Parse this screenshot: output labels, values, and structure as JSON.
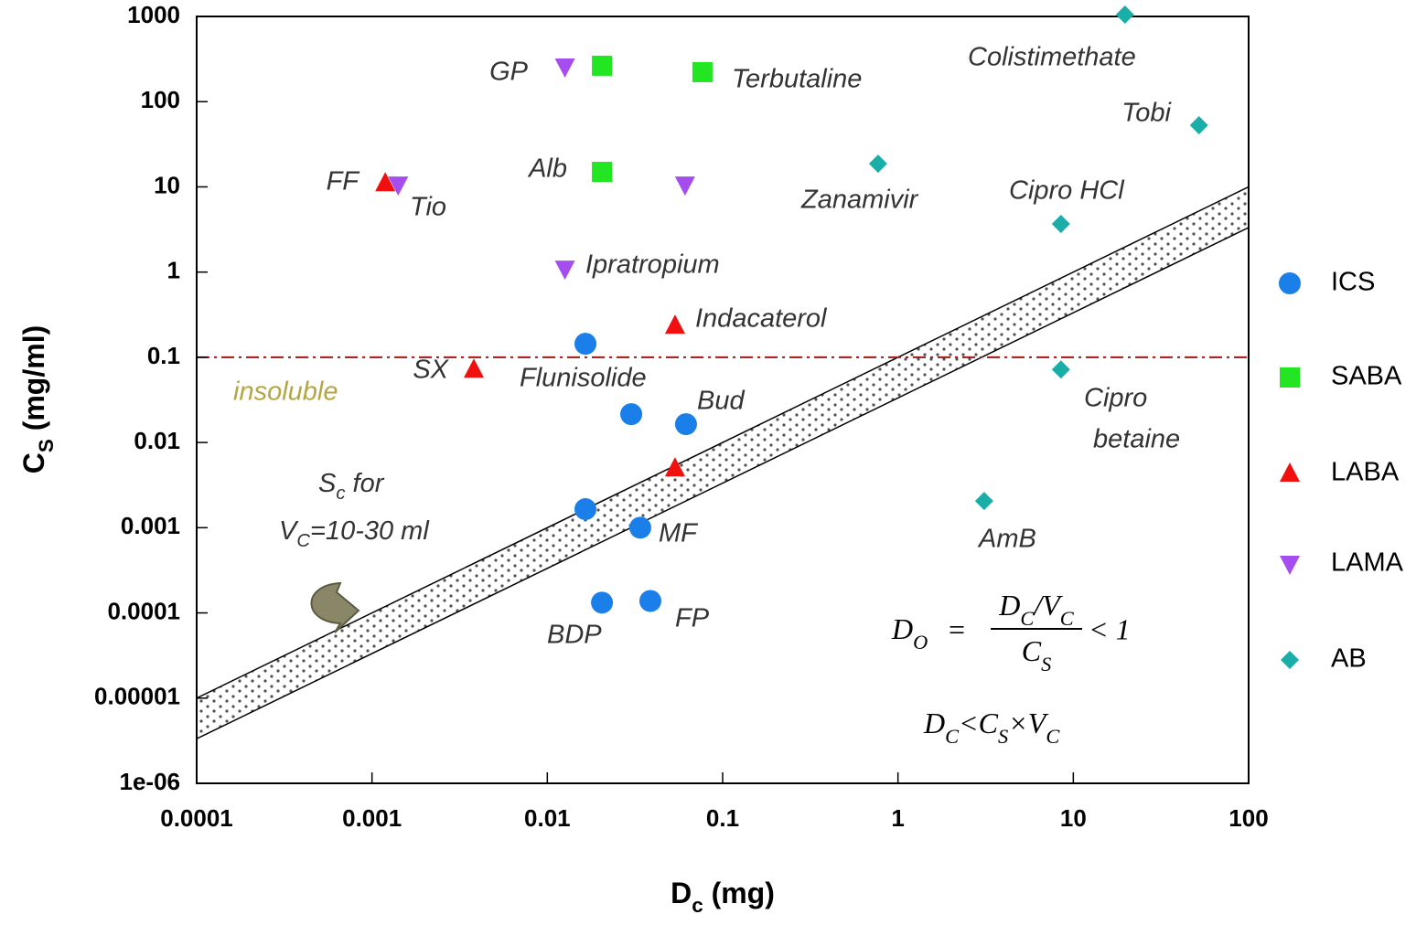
{
  "chart_data": {
    "type": "scatter",
    "x_title": [
      "D",
      "c",
      " (mg)"
    ],
    "y_title": [
      "C",
      "S",
      " (mg/ml)"
    ],
    "xlim": [
      0.0001,
      100
    ],
    "ylim": [
      1e-06,
      1000
    ],
    "log_x": true,
    "log_y": true,
    "xticks": [
      0.0001,
      0.001,
      0.01,
      0.1,
      1,
      10,
      100
    ],
    "yticks": [
      1000,
      100,
      10,
      1,
      0.1,
      0.01,
      0.001,
      0.0001,
      1e-05,
      {
        "value": 1e-06,
        "label": "1e-06"
      }
    ],
    "series": [
      {
        "name": "ICS",
        "color": "#1a7fe8",
        "marker": "circle",
        "x": [
          0.0165,
          0.0301,
          0.0618,
          0.0165,
          0.0339,
          0.0205,
          0.0387
        ],
        "values": [
          0.144,
          0.0215,
          0.0164,
          0.00165,
          0.001,
          0.000132,
          0.000138
        ]
      },
      {
        "name": "SABA",
        "color": "#22e622",
        "marker": "square",
        "x": [
          0.0205,
          0.0767,
          0.0205
        ],
        "values": [
          264,
          222,
          15
        ]
      },
      {
        "name": "LABA",
        "color": "#f01010",
        "marker": "triangle-up",
        "x": [
          0.00119,
          0.00381,
          0.0535,
          0.0535
        ],
        "values": [
          11.1,
          0.072,
          0.236,
          0.005
        ]
      },
      {
        "name": "LAMA",
        "color": "#a64df0",
        "marker": "triangle-down",
        "x": [
          0.0126,
          0.00141,
          0.061,
          0.0126
        ],
        "values": [
          257,
          10.6,
          10.6,
          1.09
        ]
      },
      {
        "name": "AB",
        "color": "#1aaea8",
        "marker": "diamond",
        "x": [
          19.7,
          52.1,
          0.77,
          8.5,
          8.5,
          3.1
        ],
        "values": [
          1050,
          52.9,
          18.7,
          3.67,
          0.072,
          0.00206
        ]
      }
    ],
    "reference_lines": [
      10,
      30
    ],
    "threshold": {
      "value": 0.1,
      "label": "insoluble",
      "color": "#a01818"
    },
    "annotations": [
      "GP",
      "Terbutaline",
      "Colistimethate",
      "Tobi",
      "FF",
      "Tio",
      "Alb",
      "Zanamivir",
      "Cipro HCl",
      "Ipratropium",
      "Indacaterol",
      "SX",
      "Flunisolide",
      "Bud",
      "Cipro",
      "betaine",
      "MF",
      "AmB",
      "BDP",
      "FP"
    ],
    "sc_note": [
      "S",
      "c",
      " for",
      "V",
      "C",
      "=10-30 ml"
    ],
    "formula_1": [
      "D",
      "O",
      "=",
      "D",
      "C",
      "/",
      "V",
      "C",
      "C",
      "S",
      "< 1"
    ],
    "formula_2": [
      "D",
      "C",
      "<",
      "C",
      "S",
      "×",
      "V",
      "C"
    ],
    "legend": "right"
  }
}
